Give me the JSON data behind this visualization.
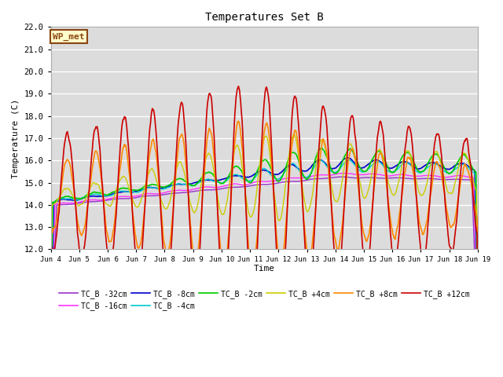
{
  "title": "Temperatures Set B",
  "xlabel": "Time",
  "ylabel": "Temperature (C)",
  "ylim": [
    12.0,
    22.0
  ],
  "yticks": [
    12.0,
    13.0,
    14.0,
    15.0,
    16.0,
    17.0,
    18.0,
    19.0,
    20.0,
    21.0,
    22.0
  ],
  "bg_color": "#dcdcdc",
  "fig_color": "#ffffff",
  "annotation_text": "WP_met",
  "annotation_bg": "#ffffcc",
  "annotation_border": "#8b4513",
  "series_order": [
    "TC_B -32cm",
    "TC_B -16cm",
    "TC_B -8cm",
    "TC_B -4cm",
    "TC_B -2cm",
    "TC_B +4cm",
    "TC_B +8cm",
    "TC_B +12cm"
  ],
  "series": {
    "TC_B -32cm": {
      "color": "#9933cc",
      "lw": 1.0
    },
    "TC_B -16cm": {
      "color": "#ff33ff",
      "lw": 1.0
    },
    "TC_B -8cm": {
      "color": "#0000cc",
      "lw": 1.2
    },
    "TC_B -4cm": {
      "color": "#00cccc",
      "lw": 1.0
    },
    "TC_B -2cm": {
      "color": "#00cc00",
      "lw": 1.2
    },
    "TC_B +4cm": {
      "color": "#cccc00",
      "lw": 1.0
    },
    "TC_B +8cm": {
      "color": "#ff8800",
      "lw": 1.2
    },
    "TC_B +12cm": {
      "color": "#cc0000",
      "lw": 1.2
    }
  },
  "xtick_labels": [
    "Jun 4",
    "Jun 5",
    "Jun 6",
    "Jun 7",
    "Jun 8",
    "Jun 9",
    "Jun 10",
    "Jun 11",
    "Jun 12",
    "Jun 13",
    "Jun 14",
    "Jun 15",
    "Jun 16",
    "Jun 17",
    "Jun 18",
    "Jun 19"
  ],
  "n_points": 720
}
